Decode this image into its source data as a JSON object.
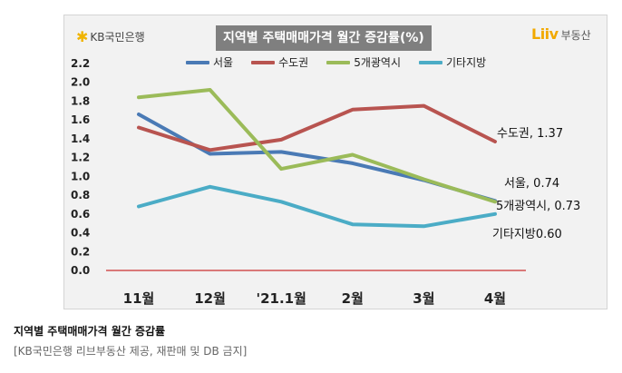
{
  "header": {
    "kb_logo_text": "KB국민은행",
    "kb_logo_icon": "star-burst-icon",
    "liiv_logo_mark": "Liiv",
    "liiv_logo_sub": "부동산"
  },
  "colors": {
    "seoul": "#4a7ab5",
    "sudogwon": "#b85450",
    "five_metro": "#9bbb59",
    "other": "#4bacc6",
    "zero_line": "#c00000",
    "title_bg": "#7f7f7f"
  },
  "chart_data": {
    "type": "line",
    "title": "지역별 주택매매가격 월간 증감률(%)",
    "categories": [
      "11월",
      "12월",
      "'21.1월",
      "2월",
      "3월",
      "4월"
    ],
    "ylim": [
      0,
      2.2
    ],
    "yticks": [
      "0.0",
      "0.2",
      "0.4",
      "0.6",
      "0.8",
      "1.0",
      "1.2",
      "1.4",
      "1.6",
      "1.8",
      "2.0",
      "2.2"
    ],
    "grid": false,
    "legend_position": "top",
    "series": [
      {
        "name": "서울",
        "values": [
          1.66,
          1.24,
          1.26,
          1.14,
          0.96,
          0.74
        ],
        "end_label": "서울, 0.74"
      },
      {
        "name": "수도권",
        "values": [
          1.52,
          1.28,
          1.39,
          1.71,
          1.75,
          1.37
        ],
        "end_label": "수도권, 1.37"
      },
      {
        "name": "5개광역시",
        "values": [
          1.84,
          1.92,
          1.08,
          1.23,
          0.97,
          0.73
        ],
        "end_label": "5개광역시, 0.73"
      },
      {
        "name": "기타지방",
        "values": [
          0.68,
          0.89,
          0.73,
          0.49,
          0.47,
          0.6
        ],
        "end_label": "기타지방0.60"
      }
    ]
  },
  "caption": {
    "title": "지역별 주택매매가격 월간 증감률",
    "source": "[KB국민은행 리브부동산 제공, 재판매 및 DB 금지]"
  }
}
